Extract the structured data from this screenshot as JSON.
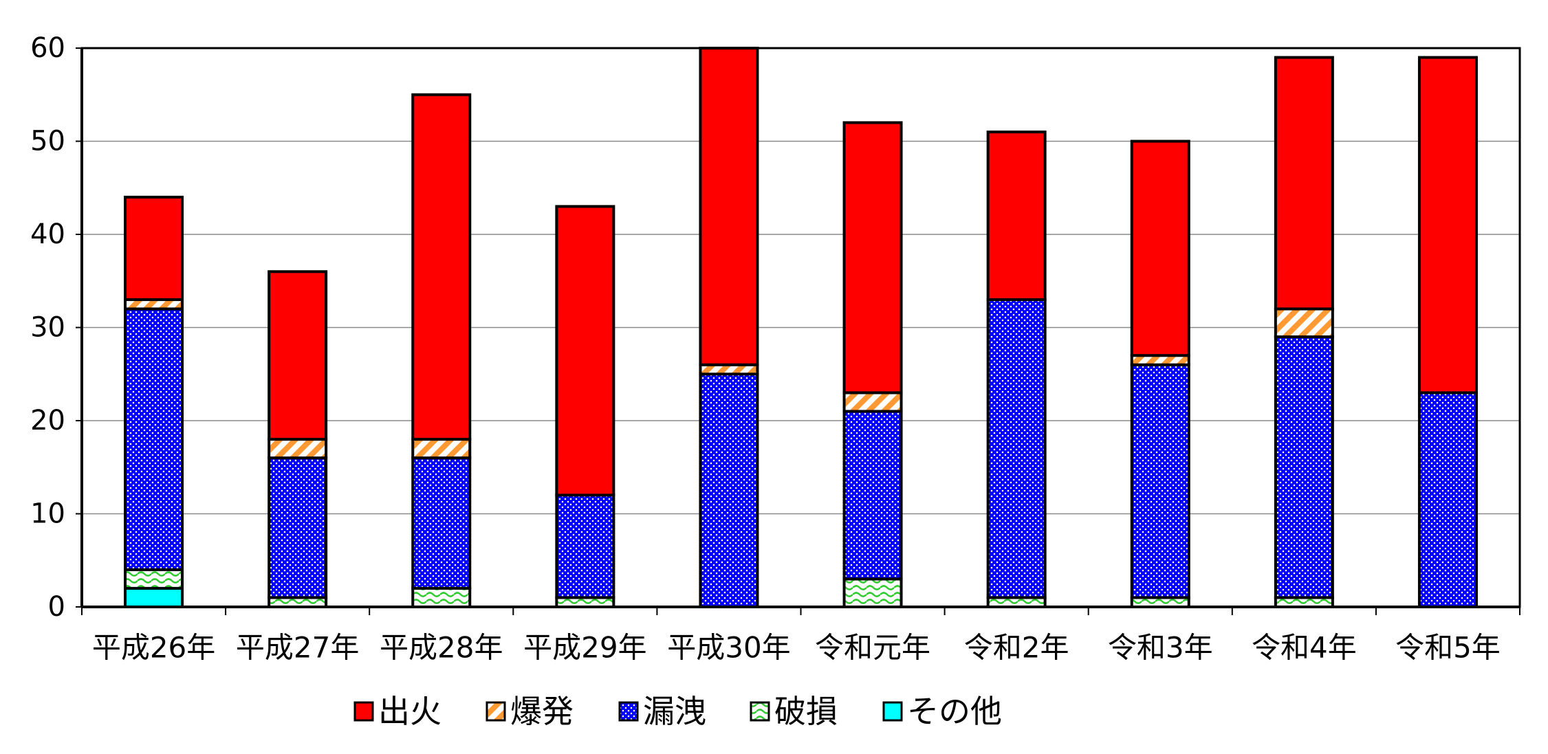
{
  "chart_data": {
    "type": "bar",
    "stacked": true,
    "categories": [
      "平成26年",
      "平成27年",
      "平成28年",
      "平成29年",
      "平成30年",
      "令和元年",
      "令和2年",
      "令和3年",
      "令和4年",
      "令和5年"
    ],
    "series": [
      {
        "name": "出火",
        "color": "#ff0000",
        "values": [
          11,
          18,
          37,
          31,
          34,
          29,
          18,
          23,
          27,
          36
        ]
      },
      {
        "name": "爆発",
        "color": "#ff9933",
        "values": [
          1,
          2,
          2,
          0,
          1,
          2,
          0,
          1,
          3,
          0
        ]
      },
      {
        "name": "漏洩",
        "color": "#0000ff",
        "values": [
          28,
          15,
          14,
          11,
          25,
          18,
          32,
          25,
          28,
          23
        ]
      },
      {
        "name": "破損",
        "color": "#33cc33",
        "values": [
          2,
          1,
          2,
          1,
          0,
          3,
          1,
          1,
          1,
          0
        ]
      },
      {
        "name": "その他",
        "color": "#00ffff",
        "values": [
          2,
          0,
          0,
          0,
          0,
          0,
          0,
          0,
          0,
          0
        ]
      }
    ],
    "ylim": [
      0,
      60
    ],
    "yticks": [
      0,
      10,
      20,
      30,
      40,
      50,
      60
    ],
    "grid": true,
    "legend": "bottom"
  }
}
